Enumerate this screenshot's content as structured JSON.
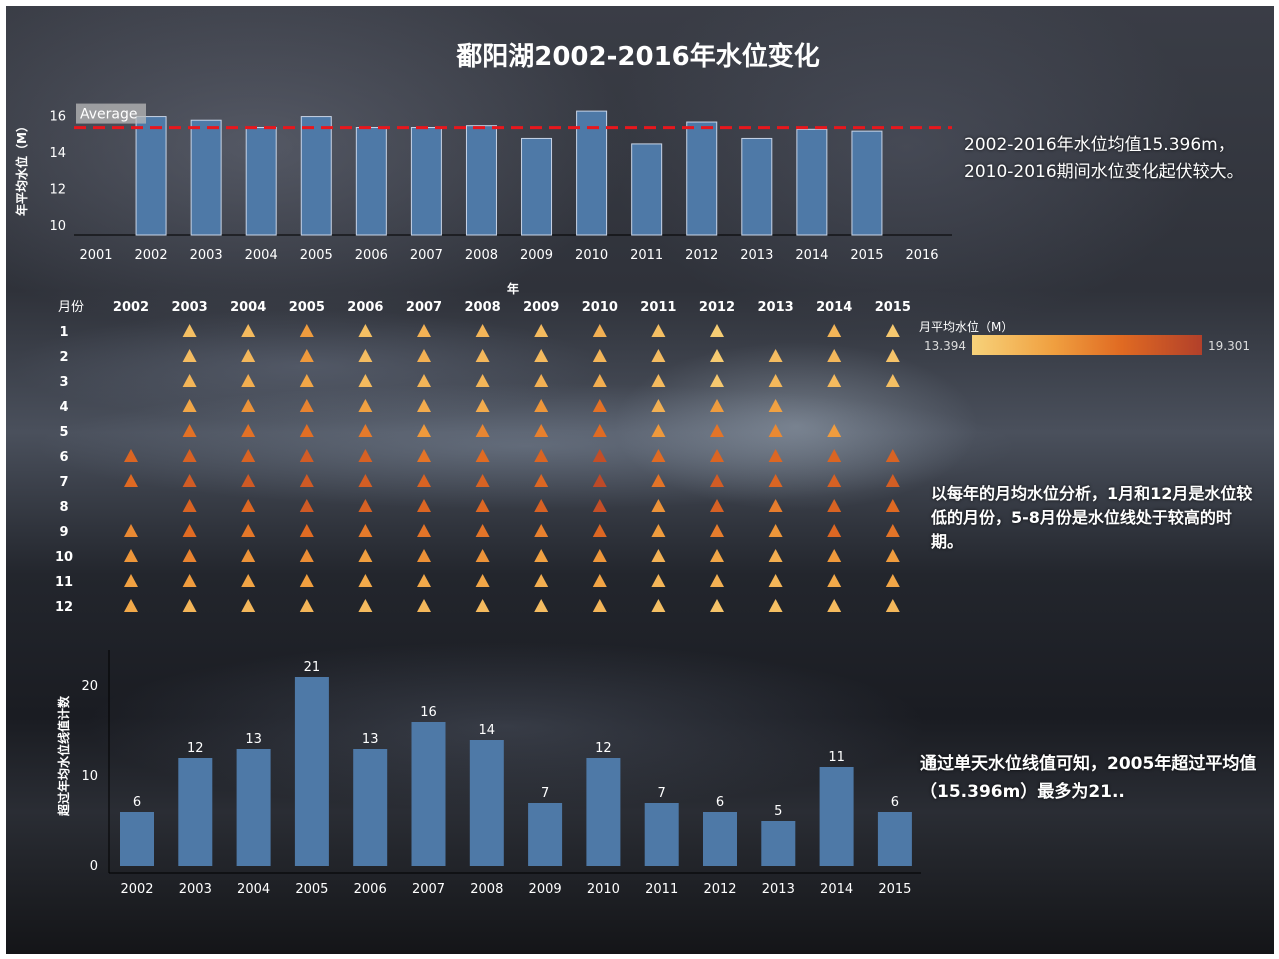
{
  "title": "鄱阳湖2002-2016年水位变化",
  "colors": {
    "bar": "#4e79a7",
    "average_line": "#e8171d",
    "triangle_low": "#f7d27a",
    "triangle_high": "#b2402a"
  },
  "notes": {
    "note1": "2002-2016年水位均值15.396m，2010-2016期间水位变化起伏较大。",
    "note2": "以每年的月均水位分析，1月和12月是水位较低的月份，5-8月份是水位线处于较高的时期。",
    "note3": "通过单天水位线值可知，2005年超过平均值（15.396m）最多为21.."
  },
  "legend": {
    "title": "月平均水位（M）",
    "min_label": "13.394",
    "max_label": "19.301"
  },
  "chart_data": [
    {
      "type": "bar",
      "name": "annual_mean",
      "categories": [
        "2002",
        "2003",
        "2004",
        "2005",
        "2006",
        "2007",
        "2008",
        "2009",
        "2010",
        "2011",
        "2012",
        "2013",
        "2014",
        "2015"
      ],
      "values": [
        16.0,
        15.8,
        15.4,
        16.0,
        15.4,
        15.4,
        15.5,
        14.8,
        16.3,
        14.5,
        15.7,
        14.8,
        15.3,
        15.2
      ],
      "ylim": [
        9.5,
        16.8
      ],
      "yticks": [
        10,
        12,
        14,
        16
      ],
      "xticks": [
        "2001",
        "2002",
        "2003",
        "2004",
        "2005",
        "2006",
        "2007",
        "2008",
        "2009",
        "2010",
        "2011",
        "2012",
        "2013",
        "2014",
        "2015",
        "2016"
      ],
      "xlabel": "年",
      "ylabel": "年平均水位（M）",
      "average": 15.396,
      "average_label": "Average"
    },
    {
      "type": "heatmap",
      "name": "monthly_mean",
      "row_header": "月份",
      "years": [
        "2002",
        "2003",
        "2004",
        "2005",
        "2006",
        "2007",
        "2008",
        "2009",
        "2010",
        "2011",
        "2012",
        "2013",
        "2014",
        "2015"
      ],
      "months": [
        "1",
        "2",
        "3",
        "4",
        "5",
        "6",
        "7",
        "8",
        "9",
        "10",
        "11",
        "12"
      ],
      "color_range": [
        13.394,
        19.301
      ],
      "values": [
        [
          null,
          14.2,
          14.4,
          15.6,
          14.2,
          14.7,
          14.6,
          14.4,
          14.8,
          14.2,
          13.6,
          null,
          14.6,
          13.8
        ],
        [
          null,
          14.3,
          14.5,
          15.7,
          14.3,
          14.8,
          14.5,
          14.4,
          14.6,
          14.3,
          13.7,
          14.3,
          14.5,
          14.0
        ],
        [
          null,
          14.6,
          14.9,
          15.2,
          14.4,
          14.6,
          14.6,
          14.8,
          14.9,
          14.4,
          13.8,
          14.5,
          14.4,
          14.2
        ],
        [
          null,
          15.2,
          15.9,
          16.4,
          15.4,
          15.0,
          15.0,
          15.8,
          17.0,
          14.8,
          15.6,
          15.4,
          null,
          null
        ],
        [
          null,
          17.0,
          17.0,
          17.1,
          16.7,
          15.7,
          16.3,
          16.5,
          17.2,
          15.7,
          16.9,
          16.2,
          15.6,
          null
        ],
        [
          17.5,
          17.7,
          17.6,
          17.9,
          17.7,
          16.9,
          17.2,
          17.5,
          18.6,
          17.2,
          17.5,
          17.4,
          17.5,
          17.6
        ],
        [
          17.3,
          17.9,
          18.0,
          18.0,
          17.8,
          17.6,
          17.6,
          17.4,
          18.8,
          16.9,
          17.9,
          17.5,
          17.7,
          17.8
        ],
        [
          null,
          17.6,
          17.4,
          18.0,
          17.7,
          17.5,
          17.4,
          17.7,
          18.6,
          15.9,
          17.7,
          16.6,
          17.6,
          17.3
        ],
        [
          16.2,
          17.2,
          16.8,
          17.2,
          16.7,
          16.9,
          16.9,
          16.5,
          17.4,
          15.6,
          16.6,
          15.8,
          17.4,
          16.9
        ],
        [
          15.8,
          16.4,
          15.9,
          16.1,
          15.5,
          16.0,
          15.9,
          15.4,
          15.8,
          14.7,
          15.2,
          14.9,
          15.7,
          15.6
        ],
        [
          15.4,
          15.6,
          15.3,
          15.5,
          15.1,
          15.1,
          15.2,
          14.9,
          15.3,
          14.6,
          14.8,
          14.6,
          15.1,
          15.2
        ],
        [
          15.1,
          14.6,
          14.5,
          14.6,
          14.4,
          14.5,
          14.4,
          14.3,
          14.6,
          14.2,
          14.0,
          14.2,
          14.4,
          14.5
        ]
      ]
    },
    {
      "type": "bar",
      "name": "days_above_average",
      "categories": [
        "2002",
        "2003",
        "2004",
        "2005",
        "2006",
        "2007",
        "2008",
        "2009",
        "2010",
        "2011",
        "2012",
        "2013",
        "2014",
        "2015"
      ],
      "values": [
        6,
        12,
        13,
        21,
        13,
        16,
        14,
        7,
        12,
        7,
        6,
        5,
        11,
        6
      ],
      "ylim": [
        0,
        24
      ],
      "yticks": [
        0,
        10,
        20
      ],
      "ylabel": "超过年均水位线值计数"
    }
  ]
}
